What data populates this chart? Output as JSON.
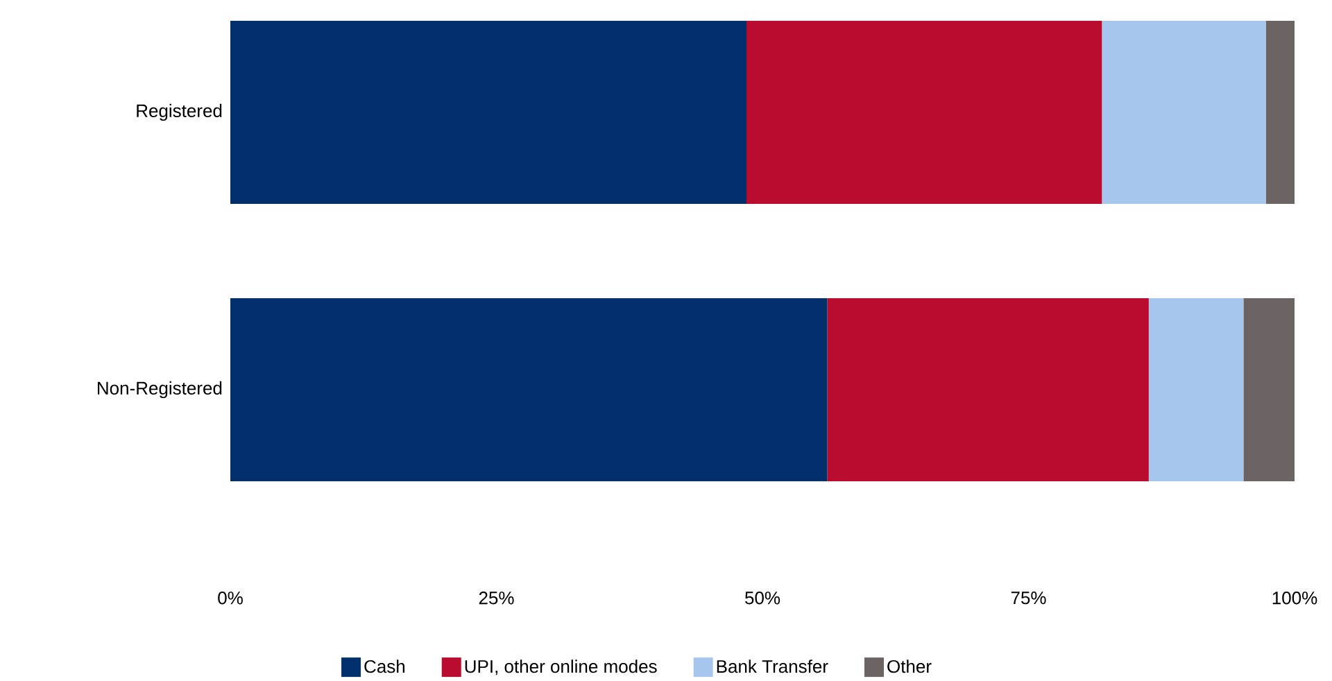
{
  "chart_data": {
    "type": "bar",
    "orientation": "horizontal",
    "stacked": true,
    "categories": [
      "Registered",
      "Non-Registered"
    ],
    "series": [
      {
        "name": "Cash",
        "color": "#002f6c",
        "values": [
          48.5,
          56.1
        ]
      },
      {
        "name": "UPI, other online modes",
        "color": "#ba0c2f",
        "values": [
          33.4,
          30.2
        ]
      },
      {
        "name": "Bank Transfer",
        "color": "#a7c6ed",
        "values": [
          15.4,
          8.9
        ]
      },
      {
        "name": "Other",
        "color": "#6c6463",
        "values": [
          2.7,
          4.8
        ]
      }
    ],
    "xlim": [
      0,
      100
    ],
    "xticks": [
      {
        "value": 0,
        "label": "0%"
      },
      {
        "value": 25,
        "label": "25%"
      },
      {
        "value": 50,
        "label": "50%"
      },
      {
        "value": 75,
        "label": "75%"
      },
      {
        "value": 100,
        "label": "100%"
      }
    ],
    "grid": false,
    "legend": "bottom"
  }
}
